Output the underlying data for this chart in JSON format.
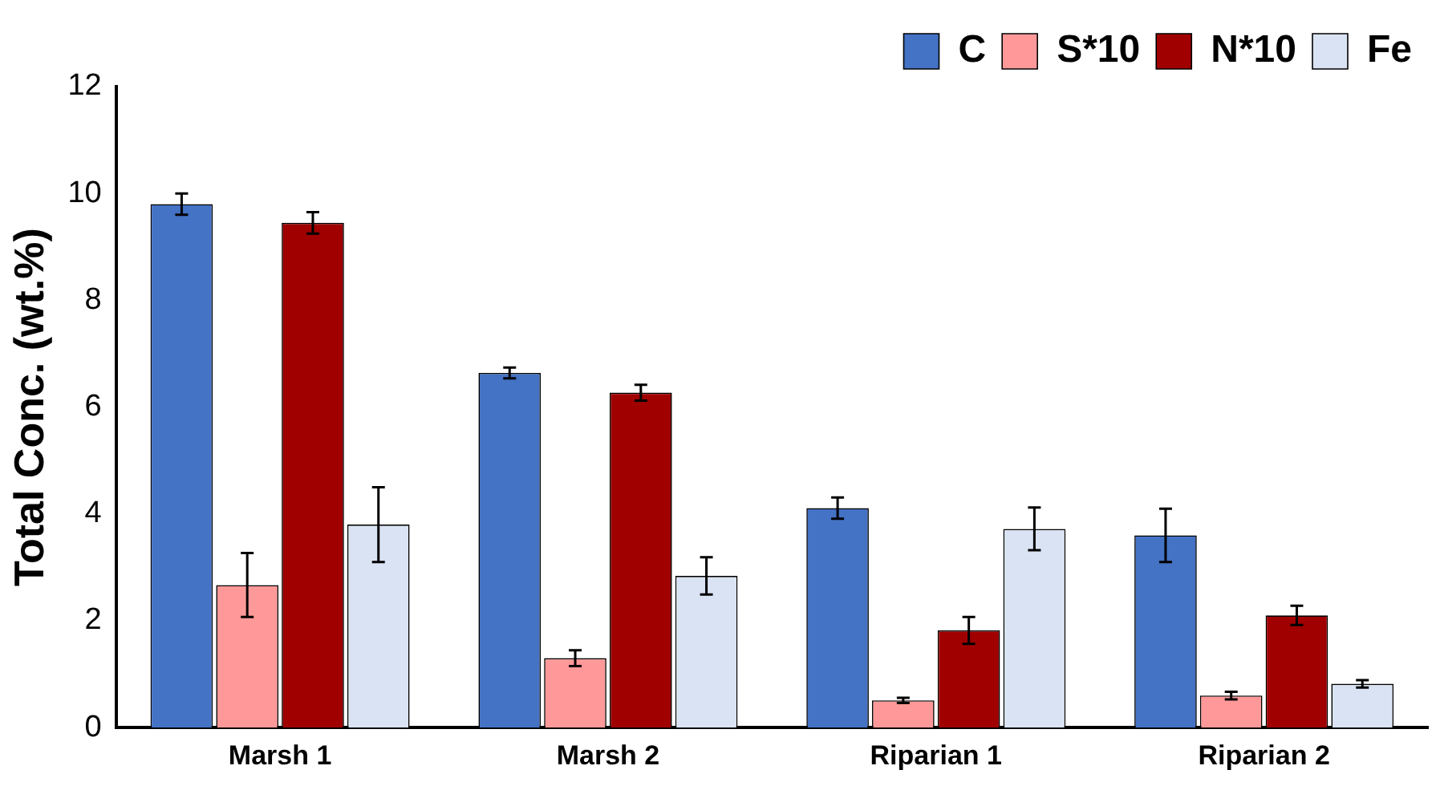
{
  "chart_data": {
    "type": "bar",
    "ylabel": "Total Conc. (wt.%)",
    "categories": [
      "Marsh 1",
      "Marsh 2",
      "Riparian 1",
      "Riparian 2"
    ],
    "series": [
      {
        "name": "C",
        "color": "#4472c4",
        "values": [
          9.8,
          6.64,
          4.11,
          3.6
        ],
        "errors": [
          0.2,
          0.1,
          0.2,
          0.5
        ]
      },
      {
        "name": "S*10",
        "color": "#ff9999",
        "values": [
          2.67,
          1.3,
          0.51,
          0.6
        ],
        "errors": [
          0.6,
          0.15,
          0.05,
          0.07
        ]
      },
      {
        "name": "N*10",
        "color": "#a00000",
        "values": [
          9.45,
          6.27,
          1.82,
          2.1
        ],
        "errors": [
          0.2,
          0.15,
          0.25,
          0.18
        ]
      },
      {
        "name": "Fe",
        "color": "#dae3f3",
        "values": [
          3.8,
          2.84,
          3.72,
          0.82
        ],
        "errors": [
          0.7,
          0.35,
          0.4,
          0.07
        ]
      }
    ],
    "ylim": [
      0,
      12
    ],
    "yticks": [
      0,
      2,
      4,
      6,
      8,
      10,
      12
    ],
    "grid": false,
    "legend": "top right"
  }
}
